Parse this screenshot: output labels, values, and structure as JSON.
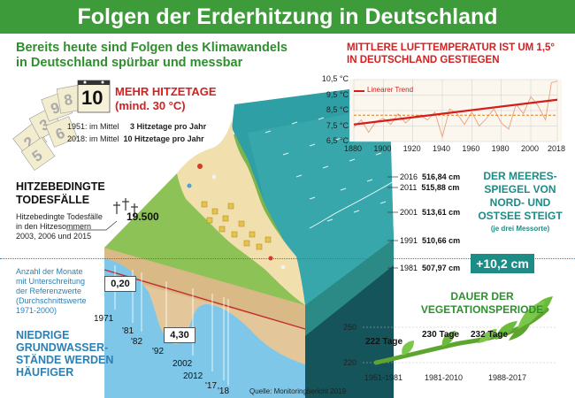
{
  "title": "Folgen der Erderhitzung in Deutschland",
  "intro": {
    "line1": "Bereits heute sind Folgen des Klimawandels",
    "line2": "in Deutschland spürbar und messbar"
  },
  "hitzetage": {
    "heading1": "MEHR HITZETAGE",
    "heading2": "(mind. 30 °C)",
    "calendar_number": "10",
    "row1_label": "1951: im Mittel",
    "row1_value": "3 Hitzetage pro Jahr",
    "row2_label": "2018: im Mittel",
    "row2_value": "10 Hitzetage pro Jahr"
  },
  "todesfaelle": {
    "heading1": "HITZEBEDINGTE",
    "heading2": "TODESFÄLLE",
    "text1": "Hitzebedingte Todesfälle",
    "text2": "in den Hitzesommern",
    "text3": "2003, 2006 und 2015",
    "value": "19.500"
  },
  "grundwasser": {
    "note1": "Anzahl der Monate",
    "note2": "mit Unterschreitung",
    "note3": "der Referenzwerte",
    "note4": "(Durchschnittswerte",
    "note5": "1971-2000)",
    "value_low": "0,20",
    "value_high": "4,30",
    "heading1": "NIEDRIGE",
    "heading2": "GRUNDWASSER-",
    "heading3": "STÄNDE WERDEN",
    "heading4": "HÄUFIGER",
    "years": [
      "1971",
      "'81",
      "'82",
      "'92",
      "2002",
      "2012",
      "'17",
      "'18"
    ]
  },
  "temperature": {
    "heading1": "MITTLERE LUFTTEMPERATUR IST UM 1,5°",
    "heading2": "IN DEUTSCHLAND GESTIEGEN",
    "legend": "Linearer Trend",
    "colors": {
      "annual": "#e8a27a",
      "trend": "#d41e1e",
      "reference": "#e07b1a",
      "cool_years": "#3a86c8"
    }
  },
  "chart_data": [
    {
      "type": "line",
      "title": "",
      "x_ticks": [
        "1880",
        "1900",
        "1920",
        "1940",
        "1960",
        "1980",
        "2000",
        "2018"
      ],
      "y_ticks": [
        "10,5 °C",
        "9,5 °C",
        "8,5 °C",
        "7,5 °C",
        "6,5 °C"
      ],
      "xlim": [
        1880,
        2018
      ],
      "ylim": [
        6.5,
        10.5
      ],
      "series": [
        {
          "name": "Linearer Trend",
          "x": [
            1880,
            2018
          ],
          "values": [
            7.6,
            9.2
          ]
        }
      ],
      "reference_line": 8.2,
      "annual_x": [
        1880,
        1885,
        1890,
        1895,
        1900,
        1905,
        1910,
        1915,
        1920,
        1925,
        1930,
        1935,
        1940,
        1945,
        1950,
        1955,
        1960,
        1965,
        1970,
        1975,
        1980,
        1985,
        1990,
        1995,
        2000,
        2005,
        2010,
        2014,
        2018
      ],
      "annual_values": [
        7.4,
        7.9,
        7.1,
        7.8,
        8.0,
        7.6,
        8.3,
        7.7,
        8.1,
        8.2,
        7.9,
        8.4,
        6.8,
        8.6,
        8.3,
        7.6,
        8.4,
        7.5,
        8.0,
        8.6,
        7.7,
        7.3,
        8.9,
        8.3,
        9.4,
        8.8,
        7.9,
        10.3,
        10.4
      ],
      "grid": true,
      "legend_position": "top-left"
    },
    {
      "type": "line",
      "title": "",
      "x_ticks": [
        "1951-1981",
        "1981-2010",
        "1988-2017"
      ],
      "y_ticks": [
        "250",
        "220"
      ],
      "ylim": [
        220,
        250
      ],
      "series": [
        {
          "name": "",
          "values": [
            222,
            230,
            232
          ]
        }
      ],
      "data_labels": [
        "222 Tage",
        "230 Tage",
        "232 Tage"
      ],
      "legend_position": "none"
    }
  ],
  "sea_level": {
    "heading1": "DER MEERES-",
    "heading2": "SPIEGEL VON",
    "heading3": "NORD- UND",
    "heading4": "OSTSEE STEIGT",
    "subheading": "(je drei Messorte)",
    "badge": "+10,2 cm",
    "rows": [
      {
        "year": "2016",
        "value": "516,84 cm"
      },
      {
        "year": "2011",
        "value": "515,88 cm"
      },
      {
        "year": "2001",
        "value": "513,61 cm"
      },
      {
        "year": "1991",
        "value": "510,66 cm"
      },
      {
        "year": "1981",
        "value": "507,97 cm"
      }
    ]
  },
  "vegetation": {
    "heading1": "DAUER DER",
    "heading2": "VEGETATIONSPERIODE"
  },
  "source": "Quelle: Monitoringbericht 2019"
}
